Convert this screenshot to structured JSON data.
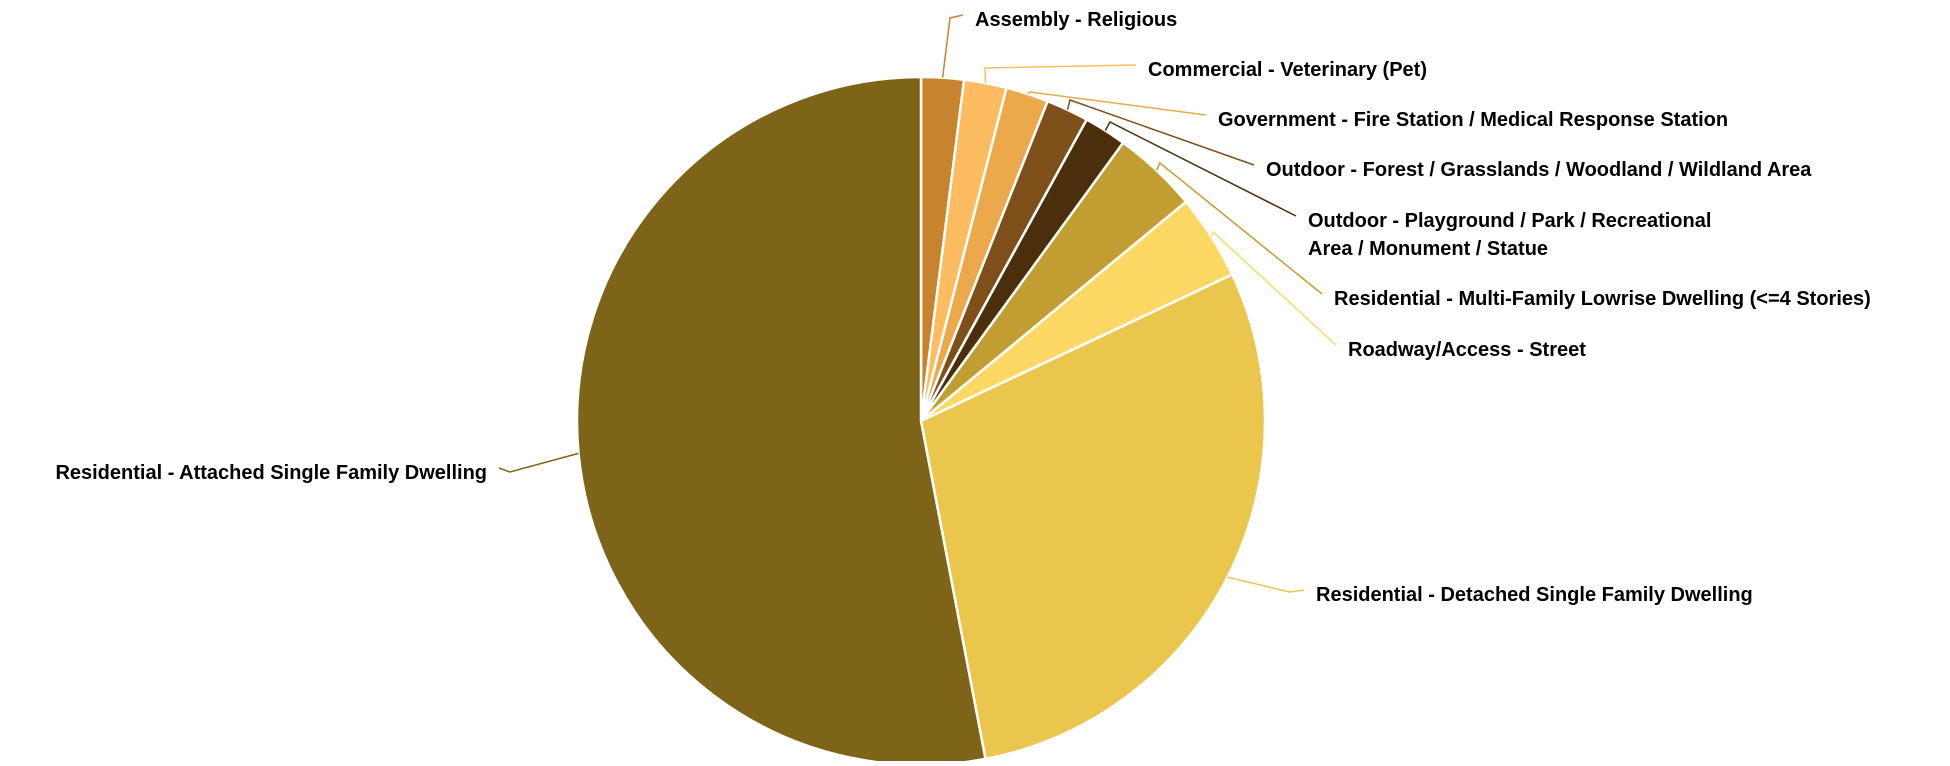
{
  "chart_data": {
    "type": "pie",
    "title": "",
    "start_angle_deg": 0,
    "direction": "clockwise",
    "slice_border_color": "#ffffff",
    "legend": "none",
    "slices": [
      {
        "label": "Assembly - Religious",
        "label_lines": [
          "Assembly - Religious"
        ],
        "value": 2.0,
        "color": "#C8832E"
      },
      {
        "label": "Commercial - Veterinary (Pet)",
        "label_lines": [
          "Commercial - Veterinary (Pet)"
        ],
        "value": 2.0,
        "color": "#FDBC5F"
      },
      {
        "label": "Government - Fire Station / Medical Response Station",
        "label_lines": [
          "Government - Fire Station / Medical Response Station"
        ],
        "value": 2.0,
        "color": "#EBA94C"
      },
      {
        "label": "Outdoor - Forest / Grasslands / Woodland / Wildland Area",
        "label_lines": [
          "Outdoor - Forest / Grasslands / Woodland / Wildland Area"
        ],
        "value": 2.0,
        "color": "#7E4F19"
      },
      {
        "label": "Outdoor - Playground / Park / Recreational Area / Monument / Statue",
        "label_lines": [
          "Outdoor - Playground / Park / Recreational",
          "Area / Monument / Statue"
        ],
        "value": 2.0,
        "color": "#4B2E0C"
      },
      {
        "label": "Residential - Multi-Family Lowrise Dwelling (<=4 Stories)",
        "label_lines": [
          "Residential - Multi-Family Lowrise Dwelling (<=4 Stories)"
        ],
        "value": 4.0,
        "color": "#C29E32"
      },
      {
        "label": "Roadway/Access - Street",
        "label_lines": [
          "Roadway/Access - Street"
        ],
        "value": 4.0,
        "color": "#FDD865"
      },
      {
        "label": "Residential - Detached Single Family Dwelling",
        "label_lines": [
          "Residential - Detached Single Family Dwelling"
        ],
        "value": 29.0,
        "color": "#EBC64C"
      },
      {
        "label": "Residential - Attached Single Family Dwelling",
        "label_lines": [
          "Residential - Attached Single Family Dwelling"
        ],
        "value": 53.0,
        "color": "#7E6419"
      }
    ]
  }
}
